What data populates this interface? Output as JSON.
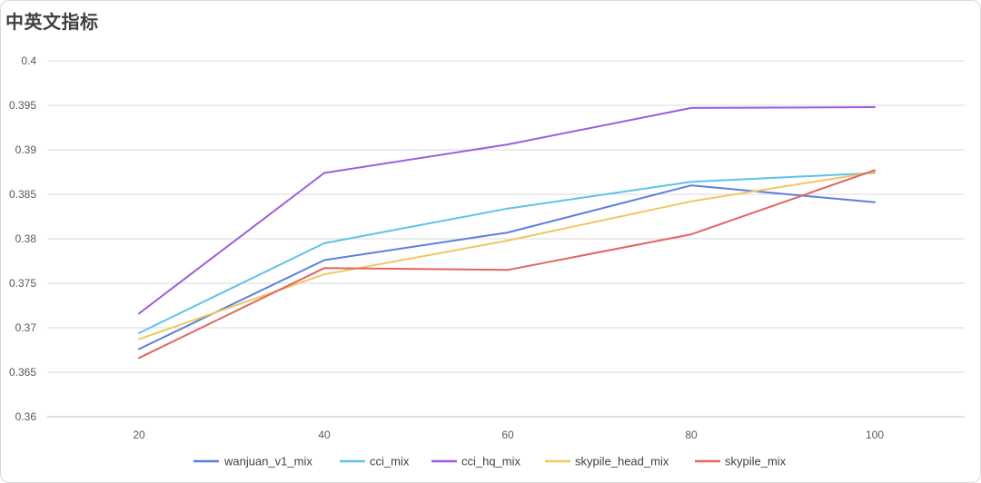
{
  "chart_data": {
    "type": "line",
    "title": "中英文指标",
    "xlabel": "",
    "ylabel": "",
    "x": [
      20,
      40,
      60,
      80,
      100
    ],
    "ylim": [
      0.36,
      0.4
    ],
    "yticks": [
      "0.36",
      "0.365",
      "0.37",
      "0.375",
      "0.38",
      "0.385",
      "0.39",
      "0.395",
      "0.4"
    ],
    "xticks": [
      "20",
      "40",
      "60",
      "80",
      "100"
    ],
    "grid": true,
    "legend_position": "bottom",
    "series": [
      {
        "name": "wanjuan_v1_mix",
        "color": "#5b7fe0",
        "values": [
          0.3676,
          0.3776,
          0.3807,
          0.386,
          0.3841
        ]
      },
      {
        "name": "cci_mix",
        "color": "#5cc3ea",
        "values": [
          0.3694,
          0.3795,
          0.3834,
          0.3864,
          0.3874
        ]
      },
      {
        "name": "cci_hq_mix",
        "color": "#9b5de0",
        "values": [
          0.3716,
          0.3874,
          0.3906,
          0.3947,
          0.3948
        ]
      },
      {
        "name": "skypile_head_mix",
        "color": "#f0c75e",
        "values": [
          0.3687,
          0.376,
          0.3798,
          0.3842,
          0.3875
        ]
      },
      {
        "name": "skypile_mix",
        "color": "#e2655f",
        "values": [
          0.3666,
          0.3767,
          0.3765,
          0.3805,
          0.3877
        ]
      }
    ]
  }
}
